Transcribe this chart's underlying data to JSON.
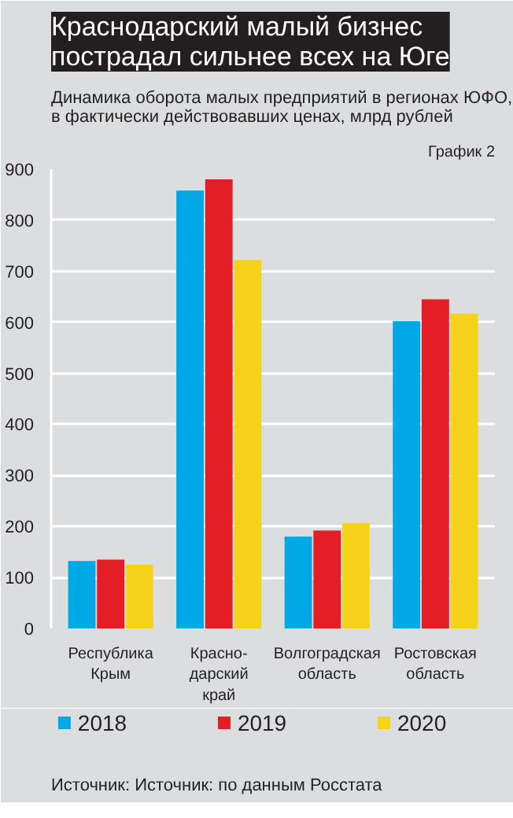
{
  "chart_data": {
    "type": "bar",
    "title": "Краснодарский малый бизнес\nпострадал сильнее всех на Юге",
    "subtitle": "Динамика оборота малых предприятий в регионах ЮФО,\nв фактически действовавших ценах, млрд рублей",
    "annotations": [
      "График 2",
      "Источник: Источник: по данным Росстата"
    ],
    "categories": [
      "Республика\nКрым",
      "Красно-\nдарский\nкрай",
      "Волгоградская\nобласть",
      "Ростовская\nобласть"
    ],
    "series": [
      {
        "name": "2018",
        "color": "#00a9e6",
        "values": [
          132,
          858,
          180,
          602
        ]
      },
      {
        "name": "2019",
        "color": "#e31e24",
        "values": [
          135,
          880,
          192,
          645
        ]
      },
      {
        "name": "2020",
        "color": "#f5d31a",
        "values": [
          125,
          722,
          207,
          617
        ]
      }
    ],
    "ylim": [
      0,
      900
    ],
    "yticks": [
      0,
      100,
      200,
      300,
      400,
      500,
      600,
      700,
      800,
      900
    ],
    "grid": "y",
    "legend": "bottom"
  }
}
